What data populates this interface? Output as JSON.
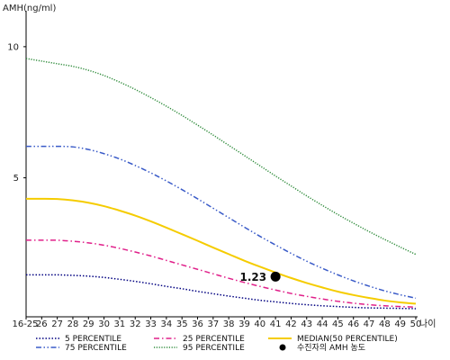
{
  "chart_data": {
    "type": "line",
    "ylabel": "AMH(ng/ml)",
    "xlabel": "나이",
    "categories": [
      "16-25",
      "26",
      "27",
      "28",
      "29",
      "30",
      "31",
      "32",
      "33",
      "34",
      "35",
      "36",
      "37",
      "38",
      "39",
      "40",
      "41",
      "42",
      "43",
      "44",
      "45",
      "46",
      "47",
      "48",
      "49",
      "50"
    ],
    "ylim": [
      -0.3,
      11.3
    ],
    "yticks": [
      5,
      10
    ],
    "series": [
      {
        "name": "5 PERCENTILE",
        "color": "#000080",
        "dash": "dotted",
        "values": [
          1.3,
          1.3,
          1.3,
          1.28,
          1.25,
          1.2,
          1.13,
          1.05,
          0.96,
          0.86,
          0.77,
          0.67,
          0.58,
          0.49,
          0.41,
          0.33,
          0.27,
          0.21,
          0.16,
          0.12,
          0.09,
          0.06,
          0.04,
          0.03,
          0.02,
          0.01
        ]
      },
      {
        "name": "25 PERCENTILE",
        "color": "#e0208a",
        "dash": "dash-dot",
        "values": [
          2.62,
          2.62,
          2.62,
          2.58,
          2.52,
          2.43,
          2.31,
          2.17,
          2.02,
          1.85,
          1.68,
          1.51,
          1.34,
          1.17,
          1.01,
          0.86,
          0.72,
          0.59,
          0.48,
          0.38,
          0.29,
          0.22,
          0.16,
          0.12,
          0.09,
          0.07
        ]
      },
      {
        "name": "MEDIAN(50 PERCENTILE)",
        "color": "#f5cc00",
        "dash": "solid",
        "values": [
          4.2,
          4.2,
          4.19,
          4.14,
          4.05,
          3.92,
          3.75,
          3.56,
          3.34,
          3.1,
          2.85,
          2.6,
          2.34,
          2.09,
          1.84,
          1.61,
          1.39,
          1.18,
          0.99,
          0.82,
          0.66,
          0.53,
          0.42,
          0.32,
          0.25,
          0.2
        ]
      },
      {
        "name": "75 PERCENTILE",
        "color": "#3a5bc8",
        "dash": "dash-dot-dot",
        "values": [
          6.2,
          6.2,
          6.2,
          6.18,
          6.08,
          5.92,
          5.72,
          5.47,
          5.19,
          4.88,
          4.55,
          4.2,
          3.84,
          3.48,
          3.12,
          2.77,
          2.44,
          2.12,
          1.82,
          1.55,
          1.3,
          1.07,
          0.87,
          0.69,
          0.54,
          0.41
        ]
      },
      {
        "name": "95 PERCENTILE",
        "color": "#2e8b3a",
        "dash": "dense-dot",
        "values": [
          9.55,
          9.45,
          9.35,
          9.25,
          9.1,
          8.9,
          8.65,
          8.37,
          8.06,
          7.73,
          7.38,
          7.01,
          6.63,
          6.24,
          5.85,
          5.46,
          5.07,
          4.69,
          4.31,
          3.95,
          3.6,
          3.27,
          2.95,
          2.65,
          2.36,
          2.08
        ]
      }
    ],
    "legend": [
      {
        "name": "5 PERCENTILE",
        "color": "#000080",
        "dash": "dotted"
      },
      {
        "name": "25 PERCENTILE",
        "color": "#e0208a",
        "dash": "dash-dot"
      },
      {
        "name": "MEDIAN(50 PERCENTILE)",
        "color": "#f5cc00",
        "dash": "solid"
      },
      {
        "name": "75 PERCENTILE",
        "color": "#3a5bc8",
        "dash": "dash-dot-dot"
      },
      {
        "name": "95 PERCENTILE",
        "color": "#2e8b3a",
        "dash": "dense-dot"
      },
      {
        "name": "수진자의 AMH 농도",
        "color": "#000000",
        "dash": "marker"
      }
    ],
    "legend_placement": "bottom",
    "grid": false,
    "patient_point": {
      "x": "41",
      "y": 1.23,
      "label": "1.23"
    }
  }
}
